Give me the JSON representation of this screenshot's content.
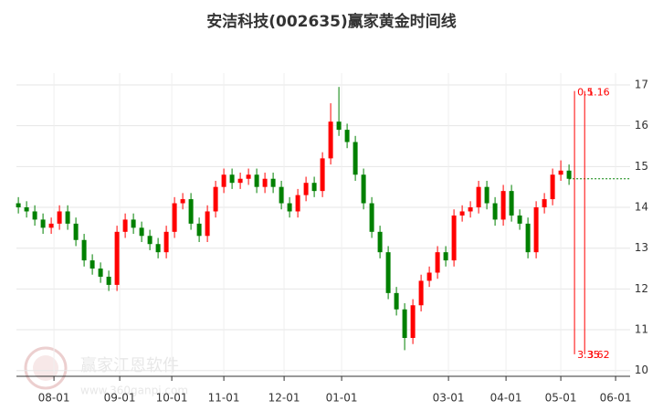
{
  "chart_data": {
    "type": "candlestick",
    "title": "安洁科技(002635)赢家黄金时间线",
    "watermark": "赢家江恩软件",
    "watermark_url": "www.360ganpi.com",
    "up_color": "#ff0000",
    "down_color": "#008000",
    "grid": true,
    "x": [
      0,
      3,
      6,
      9,
      12,
      15,
      18,
      21,
      24,
      27,
      30,
      33,
      36,
      39,
      42,
      45,
      48,
      51,
      54,
      57,
      60,
      63,
      66,
      69,
      72,
      75,
      78,
      81,
      84,
      87,
      90,
      93,
      96,
      99,
      102,
      105,
      108,
      111,
      114,
      117,
      120,
      123,
      126,
      129,
      132,
      135,
      138,
      141,
      144,
      147,
      150,
      153,
      156,
      159,
      162,
      165,
      168,
      171,
      174,
      177,
      180,
      183,
      186,
      189,
      192,
      195,
      198,
      201
    ],
    "open": [
      14.1,
      14.0,
      13.9,
      13.7,
      13.5,
      13.6,
      13.9,
      13.6,
      13.2,
      12.7,
      12.5,
      12.3,
      12.1,
      13.4,
      13.7,
      13.5,
      13.3,
      13.1,
      12.9,
      13.4,
      14.1,
      14.2,
      13.6,
      13.3,
      13.9,
      14.5,
      14.8,
      14.6,
      14.7,
      14.8,
      14.5,
      14.7,
      14.5,
      14.1,
      13.9,
      14.3,
      14.6,
      14.4,
      15.2,
      16.1,
      15.9,
      15.6,
      14.8,
      14.1,
      13.4,
      12.9,
      11.9,
      11.5,
      10.8,
      11.6,
      12.2,
      12.4,
      12.9,
      12.7,
      13.8,
      13.9,
      14.0,
      14.5,
      14.1,
      13.7,
      14.4,
      13.8,
      13.6,
      12.9,
      14.0,
      14.2,
      14.8,
      14.9
    ],
    "high": [
      14.25,
      14.15,
      14.05,
      13.85,
      13.75,
      14.05,
      14.05,
      13.75,
      13.35,
      12.85,
      12.65,
      12.45,
      13.55,
      13.85,
      13.85,
      13.65,
      13.45,
      13.25,
      13.55,
      14.25,
      14.35,
      14.35,
      13.75,
      14.05,
      14.65,
      14.95,
      14.95,
      14.85,
      14.95,
      14.95,
      14.85,
      14.85,
      14.65,
      14.25,
      14.45,
      14.75,
      14.75,
      15.35,
      16.55,
      16.95,
      16.05,
      15.75,
      14.95,
      14.25,
      13.55,
      13.05,
      12.05,
      11.65,
      11.75,
      12.35,
      12.55,
      13.05,
      13.05,
      13.95,
      14.05,
      14.15,
      14.65,
      14.65,
      14.25,
      14.55,
      14.55,
      13.95,
      13.75,
      14.15,
      14.35,
      14.95,
      15.15,
      15.05
    ],
    "low": [
      13.85,
      13.75,
      13.55,
      13.35,
      13.35,
      13.45,
      13.45,
      13.05,
      12.55,
      12.35,
      12.15,
      11.95,
      11.95,
      13.25,
      13.35,
      13.15,
      12.95,
      12.75,
      12.75,
      13.25,
      13.95,
      13.45,
      13.15,
      13.15,
      13.75,
      14.35,
      14.45,
      14.45,
      14.55,
      14.35,
      14.35,
      14.35,
      13.95,
      13.75,
      13.75,
      14.15,
      14.25,
      14.25,
      15.05,
      15.75,
      15.45,
      14.65,
      13.95,
      13.25,
      12.75,
      11.75,
      11.35,
      10.5,
      10.65,
      11.45,
      12.05,
      12.25,
      12.55,
      12.55,
      13.65,
      13.75,
      13.85,
      13.95,
      13.55,
      13.55,
      13.65,
      13.45,
      12.75,
      12.75,
      13.85,
      14.05,
      14.65,
      14.55
    ],
    "close": [
      14.0,
      13.9,
      13.7,
      13.5,
      13.6,
      13.9,
      13.6,
      13.2,
      12.7,
      12.5,
      12.3,
      12.1,
      13.4,
      13.7,
      13.5,
      13.3,
      13.1,
      12.9,
      13.4,
      14.1,
      14.2,
      13.6,
      13.3,
      13.9,
      14.5,
      14.8,
      14.6,
      14.7,
      14.8,
      14.5,
      14.7,
      14.5,
      14.1,
      13.9,
      14.3,
      14.6,
      14.4,
      15.2,
      16.1,
      15.9,
      15.6,
      14.8,
      14.1,
      13.4,
      12.9,
      11.9,
      11.5,
      10.8,
      11.6,
      12.2,
      12.4,
      12.9,
      12.7,
      13.8,
      13.9,
      14.0,
      14.5,
      14.1,
      13.7,
      14.4,
      13.8,
      13.6,
      12.9,
      14.0,
      14.2,
      14.8,
      14.9,
      14.7
    ],
    "xlim": [
      -0.7,
      223.3
    ],
    "xticks": [
      {
        "value": 13,
        "label": "08-01"
      },
      {
        "value": 37,
        "label": "09-01"
      },
      {
        "value": 56,
        "label": "10-01"
      },
      {
        "value": 75,
        "label": "11-01"
      },
      {
        "value": 97,
        "label": "12-01"
      },
      {
        "value": 118,
        "label": "01-01"
      },
      {
        "value": 157,
        "label": "03-01"
      },
      {
        "value": 178,
        "label": "04-01"
      },
      {
        "value": 198,
        "label": "05-01"
      },
      {
        "value": 218,
        "label": "06-01"
      }
    ],
    "ylim": [
      9.86,
      17.29
    ],
    "yticks": [
      10,
      11,
      12,
      13,
      14,
      15,
      16,
      17
    ],
    "golden_lines": [
      {
        "x": 203,
        "top": 16.85,
        "bottom": 10.4,
        "top_label": "0.5",
        "bottom_label": "3.35"
      },
      {
        "x": 206.7,
        "top": 16.85,
        "bottom": 10.4,
        "top_label": "1.16",
        "bottom_label": "3.62"
      }
    ]
  }
}
